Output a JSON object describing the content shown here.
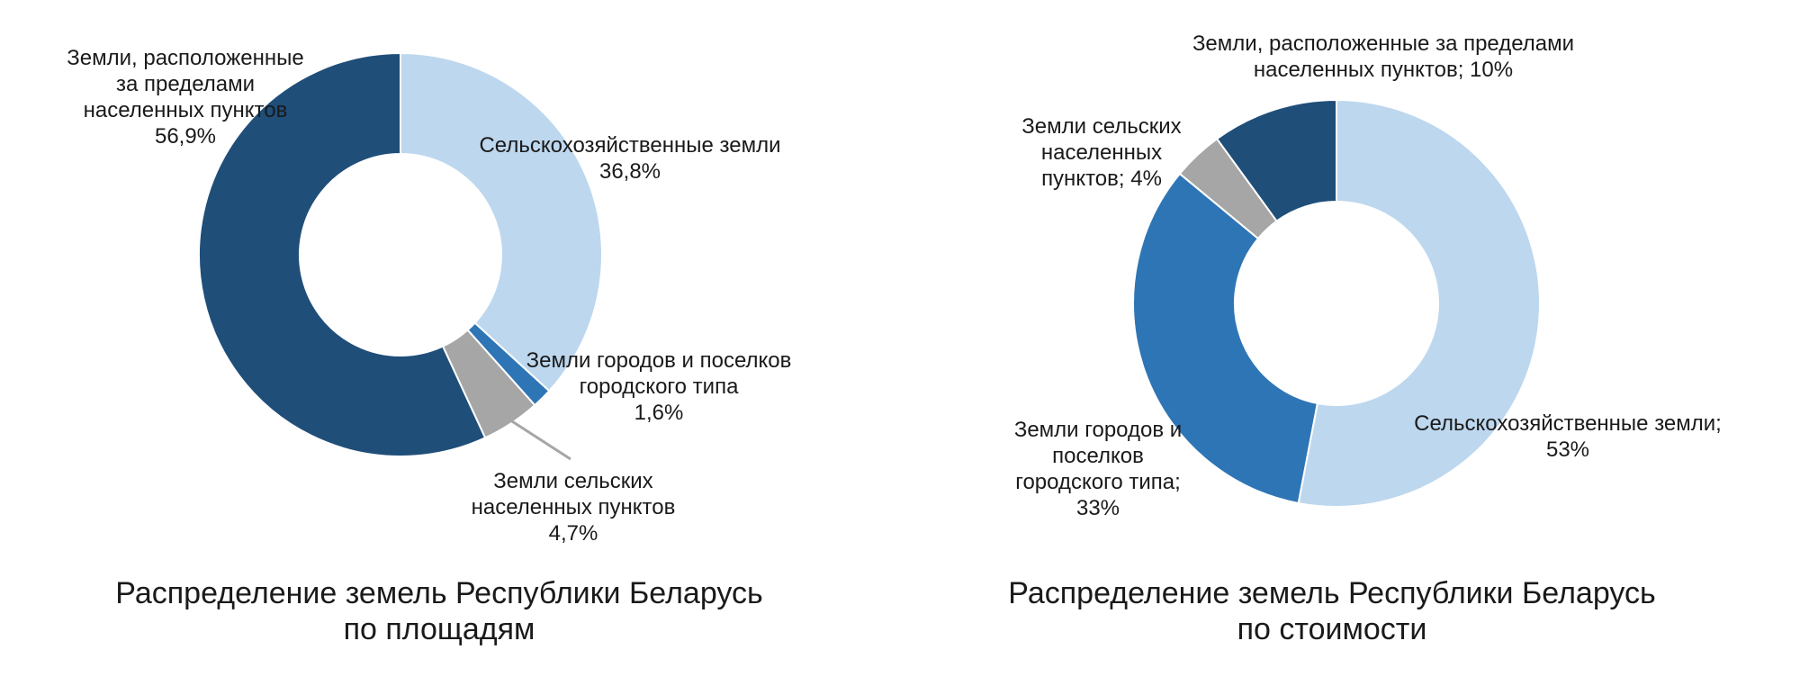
{
  "chart_data": [
    {
      "type": "pie",
      "title_lines": [
        "Распределение земель Республики Беларусь",
        "по площадям"
      ],
      "slices": [
        {
          "label_lines": [
            "Сельскохозяйственные земли",
            "36,8%"
          ],
          "value": 36.8,
          "color": "#bdd7ee"
        },
        {
          "label_lines": [
            "Земли городов и поселков",
            "городского типа",
            "1,6%"
          ],
          "value": 1.6,
          "color": "#2e75b6"
        },
        {
          "label_lines": [
            "Земли сельских",
            "населенных пунктов",
            "4,7%"
          ],
          "value": 4.7,
          "color": "#a6a6a6"
        },
        {
          "label_lines": [
            "Земли, расположенные",
            "за пределами",
            "населенных пунктов",
            "56,9%"
          ],
          "value": 56.9,
          "color": "#1f4e79"
        }
      ]
    },
    {
      "type": "pie",
      "title_lines": [
        "Распределение земель Республики Беларусь",
        "по стоимости"
      ],
      "slices": [
        {
          "label_lines": [
            "Сельскохозяйственные земли;",
            "53%"
          ],
          "value": 53,
          "color": "#bdd7ee"
        },
        {
          "label_lines": [
            "Земли городов и",
            "поселков",
            "городского типа;",
            "33%"
          ],
          "value": 33,
          "color": "#2e75b6"
        },
        {
          "label_lines": [
            "Земли сельских",
            "населенных",
            "пунктов; 4%"
          ],
          "value": 4,
          "color": "#a6a6a6"
        },
        {
          "label_lines": [
            "Земли, расположенные за пределами",
            "населенных пунктов; 10%"
          ],
          "value": 10,
          "color": "#1f4e79"
        }
      ]
    }
  ]
}
